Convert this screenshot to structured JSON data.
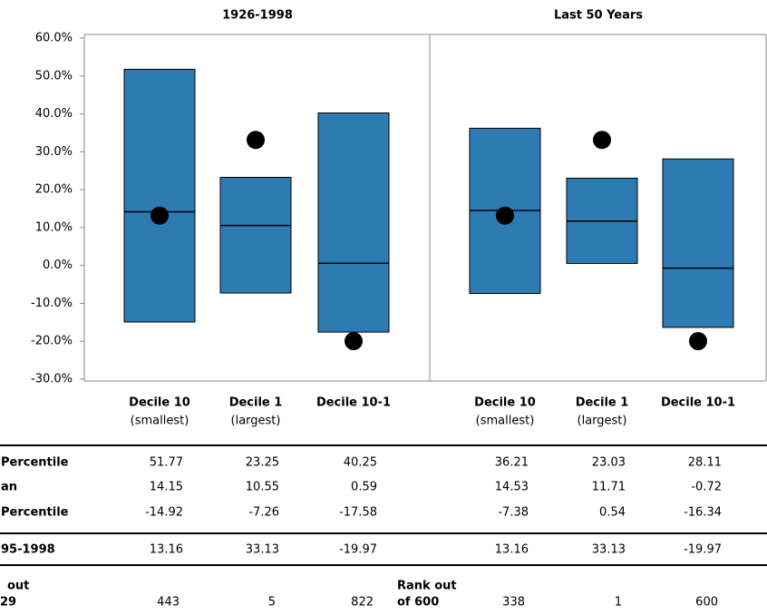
{
  "chart_data": {
    "type": "box",
    "ylim": [
      -30,
      60
    ],
    "yticks": [
      {
        "value": 60,
        "label": "60.0%"
      },
      {
        "value": 50,
        "label": "50.0%"
      },
      {
        "value": 40,
        "label": "40.0%"
      },
      {
        "value": 30,
        "label": "30.0%"
      },
      {
        "value": 20,
        "label": "20.0%"
      },
      {
        "value": 10,
        "label": "10.0%"
      },
      {
        "value": 0,
        "label": "0.0%"
      },
      {
        "value": -10,
        "label": "-10.0%"
      },
      {
        "value": -20,
        "label": "-20.0%"
      },
      {
        "value": -30,
        "label": "-30.0%"
      }
    ],
    "color": "#2e7bb4",
    "row_labels": [
      "Percentile",
      "an",
      "Percentile",
      "95-1998"
    ],
    "rank_label": [
      "out",
      "29"
    ],
    "panels": [
      {
        "title": "1926-1998",
        "categories": [
          {
            "name": "Decile 10",
            "sub": "(smallest)"
          },
          {
            "name": "Decile 1",
            "sub": "(largest)"
          },
          {
            "name": "Decile 10-1"
          }
        ],
        "p90": [
          51.77,
          23.25,
          40.25
        ],
        "median": [
          14.15,
          10.55,
          0.59
        ],
        "p10": [
          -14.92,
          -7.26,
          -17.58
        ],
        "recent": [
          13.16,
          33.13,
          -19.97
        ],
        "rank": [
          443,
          5,
          822
        ]
      },
      {
        "title": "Last 50 Years",
        "categories": [
          {
            "name": "Decile 10",
            "sub": "(smallest)"
          },
          {
            "name": "Decile 1",
            "sub": "(largest)"
          },
          {
            "name": "Decile 10-1"
          }
        ],
        "p90": [
          36.21,
          23.03,
          28.11
        ],
        "median": [
          14.53,
          11.71,
          -0.72
        ],
        "p10": [
          -7.38,
          0.54,
          -16.34
        ],
        "recent": [
          13.16,
          33.13,
          -19.97
        ],
        "rank": [
          338,
          1,
          600
        ],
        "rank_label": [
          "Rank out",
          "of 600"
        ]
      }
    ]
  }
}
